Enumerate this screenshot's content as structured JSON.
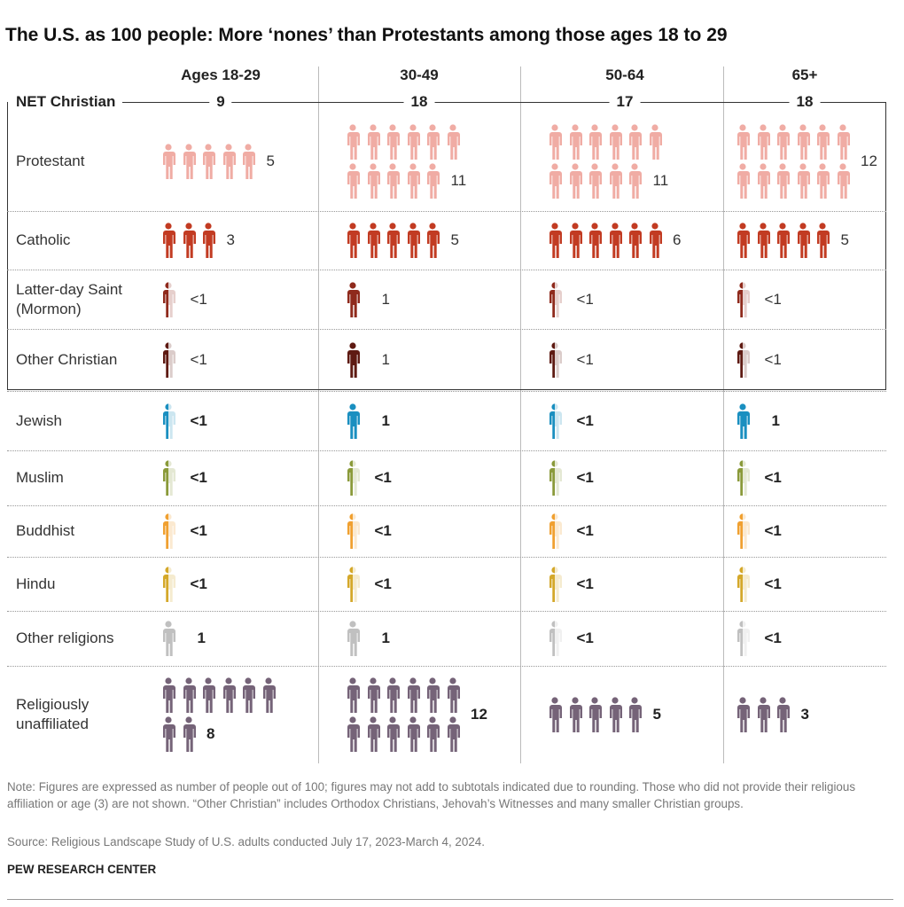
{
  "title": "The U.S. as 100 people: More ‘nones’ than Protestants among those ages 18 to 29",
  "chart_data": {
    "type": "pictograph",
    "unit": "people out of 100",
    "categories": [
      "Ages 18-29",
      "30-49",
      "50-64",
      "65+"
    ],
    "net_christian": {
      "label": "NET Christian",
      "values": [
        "9",
        "18",
        "17",
        "18"
      ]
    },
    "series": [
      {
        "name": "Protestant",
        "color": "#f0aca4",
        "values": [
          "5",
          "11",
          "11",
          "12"
        ],
        "bold": false
      },
      {
        "name": "Catholic",
        "color": "#c23b22",
        "values": [
          "3",
          "5",
          "6",
          "5"
        ],
        "bold": false
      },
      {
        "name": "Latter-day Saint (Mormon)",
        "color": "#8f2a1c",
        "values": [
          "<1",
          "1",
          "<1",
          "<1"
        ],
        "bold": false
      },
      {
        "name": "Other Christian",
        "color": "#5e1a12",
        "values": [
          "<1",
          "1",
          "<1",
          "<1"
        ],
        "bold": false
      },
      {
        "name": "Jewish",
        "color": "#1a8fc0",
        "values": [
          "<1",
          "1",
          "<1",
          "1"
        ],
        "bold": true
      },
      {
        "name": "Muslim",
        "color": "#8a9a3a",
        "values": [
          "<1",
          "<1",
          "<1",
          "<1"
        ],
        "bold": true
      },
      {
        "name": "Buddhist",
        "color": "#f0a030",
        "values": [
          "<1",
          "<1",
          "<1",
          "<1"
        ],
        "bold": true
      },
      {
        "name": "Hindu",
        "color": "#d4a82a",
        "values": [
          "<1",
          "<1",
          "<1",
          "<1"
        ],
        "bold": true
      },
      {
        "name": "Other religions",
        "color": "#c0c0c0",
        "values": [
          "1",
          "1",
          "<1",
          "<1"
        ],
        "bold": true
      },
      {
        "name": "Religiously unaffiliated",
        "color": "#756378",
        "values": [
          "8",
          "12",
          "5",
          "3"
        ],
        "bold": true
      }
    ]
  },
  "footer": {
    "note": "Note: Figures are expressed as number of people out of 100; figures may not add to subtotals indicated due to rounding. Those who did not provide their religious affiliation or age (3) are not shown. “Other Christian” includes Orthodox Christians, Jehovah’s Witnesses and many smaller Christian groups.",
    "source": "Source: Religious Landscape Study of U.S. adults conducted July 17, 2023-March 4, 2024.",
    "brand": "PEW RESEARCH CENTER"
  }
}
